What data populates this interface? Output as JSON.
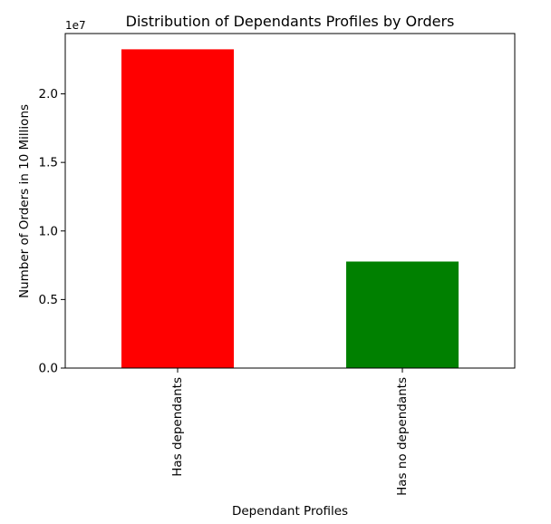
{
  "chart_data": {
    "type": "bar",
    "title": "Distribution of Dependants Profiles by Orders",
    "xlabel": "Dependant Profiles",
    "ylabel": "Number of Orders in 10 Millions",
    "y_offset_label": "1e7",
    "categories": [
      "Has dependants",
      "Has no dependants"
    ],
    "values": [
      23250000,
      7770000
    ],
    "colors": [
      "#ff0000",
      "#008000"
    ],
    "ylim": [
      0,
      24400000
    ],
    "yticks": [
      0,
      5000000,
      10000000,
      15000000,
      20000000
    ],
    "ytick_labels": [
      "0.0",
      "0.5",
      "1.0",
      "1.5",
      "2.0"
    ],
    "grid": false,
    "legend": "none"
  }
}
